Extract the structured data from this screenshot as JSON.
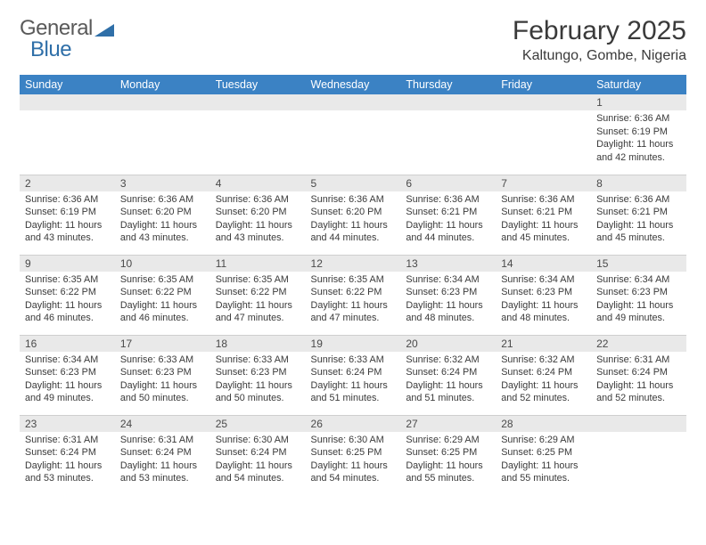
{
  "brand": {
    "part1": "General",
    "part2": "Blue"
  },
  "title": "February 2025",
  "location": "Kaltungo, Gombe, Nigeria",
  "style": {
    "header_bg": "#3b82c4",
    "header_fg": "#ffffff",
    "daynum_bg": "#e9e9e9",
    "text_color": "#3a3a3a",
    "border_color": "#cfcfcf",
    "title_fontsize_pt": 22,
    "location_fontsize_pt": 12,
    "cell_fontsize_pt": 8,
    "header_fontsize_pt": 9.5
  },
  "weekdays": [
    "Sunday",
    "Monday",
    "Tuesday",
    "Wednesday",
    "Thursday",
    "Friday",
    "Saturday"
  ],
  "weeks": [
    [
      {
        "n": "",
        "lines": []
      },
      {
        "n": "",
        "lines": []
      },
      {
        "n": "",
        "lines": []
      },
      {
        "n": "",
        "lines": []
      },
      {
        "n": "",
        "lines": []
      },
      {
        "n": "",
        "lines": []
      },
      {
        "n": "1",
        "lines": [
          "Sunrise: 6:36 AM",
          "Sunset: 6:19 PM",
          "Daylight: 11 hours and 42 minutes."
        ]
      }
    ],
    [
      {
        "n": "2",
        "lines": [
          "Sunrise: 6:36 AM",
          "Sunset: 6:19 PM",
          "Daylight: 11 hours and 43 minutes."
        ]
      },
      {
        "n": "3",
        "lines": [
          "Sunrise: 6:36 AM",
          "Sunset: 6:20 PM",
          "Daylight: 11 hours and 43 minutes."
        ]
      },
      {
        "n": "4",
        "lines": [
          "Sunrise: 6:36 AM",
          "Sunset: 6:20 PM",
          "Daylight: 11 hours and 43 minutes."
        ]
      },
      {
        "n": "5",
        "lines": [
          "Sunrise: 6:36 AM",
          "Sunset: 6:20 PM",
          "Daylight: 11 hours and 44 minutes."
        ]
      },
      {
        "n": "6",
        "lines": [
          "Sunrise: 6:36 AM",
          "Sunset: 6:21 PM",
          "Daylight: 11 hours and 44 minutes."
        ]
      },
      {
        "n": "7",
        "lines": [
          "Sunrise: 6:36 AM",
          "Sunset: 6:21 PM",
          "Daylight: 11 hours and 45 minutes."
        ]
      },
      {
        "n": "8",
        "lines": [
          "Sunrise: 6:36 AM",
          "Sunset: 6:21 PM",
          "Daylight: 11 hours and 45 minutes."
        ]
      }
    ],
    [
      {
        "n": "9",
        "lines": [
          "Sunrise: 6:35 AM",
          "Sunset: 6:22 PM",
          "Daylight: 11 hours and 46 minutes."
        ]
      },
      {
        "n": "10",
        "lines": [
          "Sunrise: 6:35 AM",
          "Sunset: 6:22 PM",
          "Daylight: 11 hours and 46 minutes."
        ]
      },
      {
        "n": "11",
        "lines": [
          "Sunrise: 6:35 AM",
          "Sunset: 6:22 PM",
          "Daylight: 11 hours and 47 minutes."
        ]
      },
      {
        "n": "12",
        "lines": [
          "Sunrise: 6:35 AM",
          "Sunset: 6:22 PM",
          "Daylight: 11 hours and 47 minutes."
        ]
      },
      {
        "n": "13",
        "lines": [
          "Sunrise: 6:34 AM",
          "Sunset: 6:23 PM",
          "Daylight: 11 hours and 48 minutes."
        ]
      },
      {
        "n": "14",
        "lines": [
          "Sunrise: 6:34 AM",
          "Sunset: 6:23 PM",
          "Daylight: 11 hours and 48 minutes."
        ]
      },
      {
        "n": "15",
        "lines": [
          "Sunrise: 6:34 AM",
          "Sunset: 6:23 PM",
          "Daylight: 11 hours and 49 minutes."
        ]
      }
    ],
    [
      {
        "n": "16",
        "lines": [
          "Sunrise: 6:34 AM",
          "Sunset: 6:23 PM",
          "Daylight: 11 hours and 49 minutes."
        ]
      },
      {
        "n": "17",
        "lines": [
          "Sunrise: 6:33 AM",
          "Sunset: 6:23 PM",
          "Daylight: 11 hours and 50 minutes."
        ]
      },
      {
        "n": "18",
        "lines": [
          "Sunrise: 6:33 AM",
          "Sunset: 6:23 PM",
          "Daylight: 11 hours and 50 minutes."
        ]
      },
      {
        "n": "19",
        "lines": [
          "Sunrise: 6:33 AM",
          "Sunset: 6:24 PM",
          "Daylight: 11 hours and 51 minutes."
        ]
      },
      {
        "n": "20",
        "lines": [
          "Sunrise: 6:32 AM",
          "Sunset: 6:24 PM",
          "Daylight: 11 hours and 51 minutes."
        ]
      },
      {
        "n": "21",
        "lines": [
          "Sunrise: 6:32 AM",
          "Sunset: 6:24 PM",
          "Daylight: 11 hours and 52 minutes."
        ]
      },
      {
        "n": "22",
        "lines": [
          "Sunrise: 6:31 AM",
          "Sunset: 6:24 PM",
          "Daylight: 11 hours and 52 minutes."
        ]
      }
    ],
    [
      {
        "n": "23",
        "lines": [
          "Sunrise: 6:31 AM",
          "Sunset: 6:24 PM",
          "Daylight: 11 hours and 53 minutes."
        ]
      },
      {
        "n": "24",
        "lines": [
          "Sunrise: 6:31 AM",
          "Sunset: 6:24 PM",
          "Daylight: 11 hours and 53 minutes."
        ]
      },
      {
        "n": "25",
        "lines": [
          "Sunrise: 6:30 AM",
          "Sunset: 6:24 PM",
          "Daylight: 11 hours and 54 minutes."
        ]
      },
      {
        "n": "26",
        "lines": [
          "Sunrise: 6:30 AM",
          "Sunset: 6:25 PM",
          "Daylight: 11 hours and 54 minutes."
        ]
      },
      {
        "n": "27",
        "lines": [
          "Sunrise: 6:29 AM",
          "Sunset: 6:25 PM",
          "Daylight: 11 hours and 55 minutes."
        ]
      },
      {
        "n": "28",
        "lines": [
          "Sunrise: 6:29 AM",
          "Sunset: 6:25 PM",
          "Daylight: 11 hours and 55 minutes."
        ]
      },
      {
        "n": "",
        "lines": []
      }
    ]
  ]
}
